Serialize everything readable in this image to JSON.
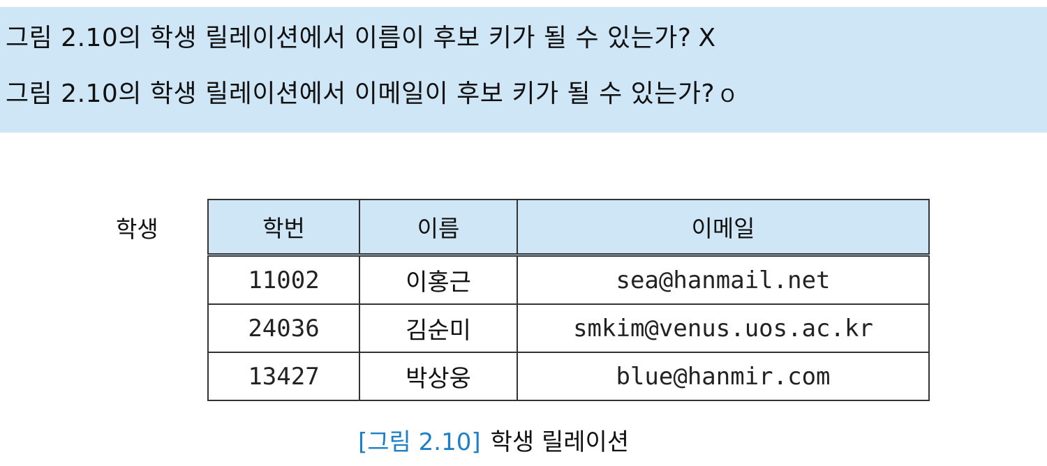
{
  "questions": [
    {
      "text": "그림 2.10의 학생 릴레이션에서 이름이 후보 키가 될 수 있는가?",
      "mark": "X"
    },
    {
      "text": "그림 2.10의 학생 릴레이션에서 이메일이 후보 키가 될 수 있는가?",
      "mark": "O"
    }
  ],
  "relation": {
    "label": "학생",
    "headers": [
      "학번",
      "이름",
      "이메일"
    ],
    "rows": [
      [
        "11002",
        "이홍근",
        "sea@hanmail.net"
      ],
      [
        "24036",
        "김순미",
        "smkim@venus.uos.ac.kr"
      ],
      [
        "13427",
        "박상웅",
        "blue@hanmir.com"
      ]
    ]
  },
  "caption": {
    "number": "[그림 2.10]",
    "title": "학생 릴레이션"
  }
}
